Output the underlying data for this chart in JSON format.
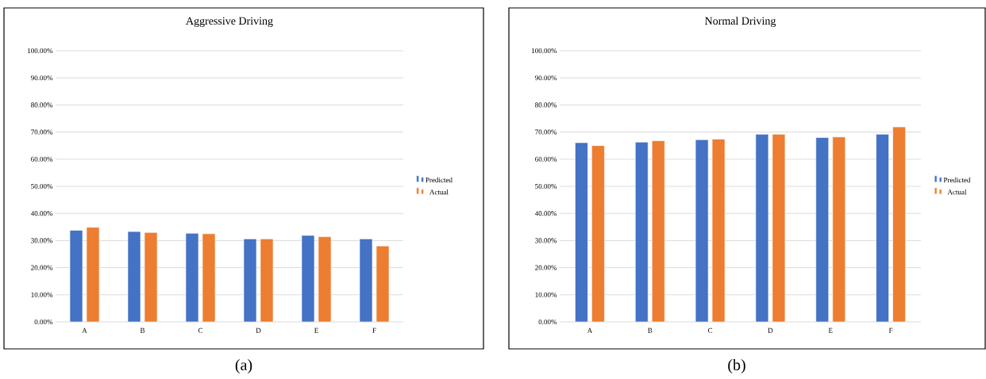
{
  "chart_data": [
    {
      "type": "bar",
      "title": "Aggressive Driving",
      "categories": [
        "A",
        "B",
        "C",
        "D",
        "E",
        "F"
      ],
      "series": [
        {
          "name": "Predicted",
          "color": "#4472c4",
          "values": [
            33.8,
            33.3,
            32.7,
            30.6,
            31.9,
            30.6
          ]
        },
        {
          "name": "Actual",
          "color": "#ed7d31",
          "values": [
            34.9,
            33.0,
            32.5,
            30.6,
            31.4,
            28.0
          ]
        }
      ],
      "ylim": [
        0,
        100
      ],
      "yticks": [
        {
          "value": 0,
          "label": "0.00%"
        },
        {
          "value": 10,
          "label": "10.00%"
        },
        {
          "value": 20,
          "label": "20.00%"
        },
        {
          "value": 30,
          "label": "30.00%"
        },
        {
          "value": 40,
          "label": "40.00%"
        },
        {
          "value": 50,
          "label": "50.00%"
        },
        {
          "value": 60,
          "label": "60.00%"
        },
        {
          "value": 70,
          "label": "70.00%"
        },
        {
          "value": 80,
          "label": "80.00%"
        },
        {
          "value": 90,
          "label": "90.00%"
        },
        {
          "value": 100,
          "label": "100.00%"
        }
      ],
      "grid": "y",
      "legend": "right",
      "annotations": [
        "(a)"
      ]
    },
    {
      "type": "bar",
      "title": "Normal Driving",
      "categories": [
        "A",
        "B",
        "C",
        "D",
        "E",
        "F"
      ],
      "series": [
        {
          "name": "Predicted",
          "color": "#4472c4",
          "values": [
            66.1,
            66.3,
            67.2,
            69.2,
            68.0,
            69.2
          ]
        },
        {
          "name": "Actual",
          "color": "#ed7d31",
          "values": [
            65.0,
            66.8,
            67.4,
            69.2,
            68.2,
            71.9
          ]
        }
      ],
      "ylim": [
        0,
        100
      ],
      "yticks": [
        {
          "value": 0,
          "label": "0.00%"
        },
        {
          "value": 10,
          "label": "10.00%"
        },
        {
          "value": 20,
          "label": "20.00%"
        },
        {
          "value": 30,
          "label": "30.00%"
        },
        {
          "value": 40,
          "label": "40.00%"
        },
        {
          "value": 50,
          "label": "50.00%"
        },
        {
          "value": 60,
          "label": "60.00%"
        },
        {
          "value": 70,
          "label": "70.00%"
        },
        {
          "value": 80,
          "label": "80.00%"
        },
        {
          "value": 90,
          "label": "90.00%"
        },
        {
          "value": 100,
          "label": "100.00%"
        }
      ],
      "grid": "y",
      "legend": "right",
      "annotations": [
        "(b)"
      ]
    }
  ]
}
